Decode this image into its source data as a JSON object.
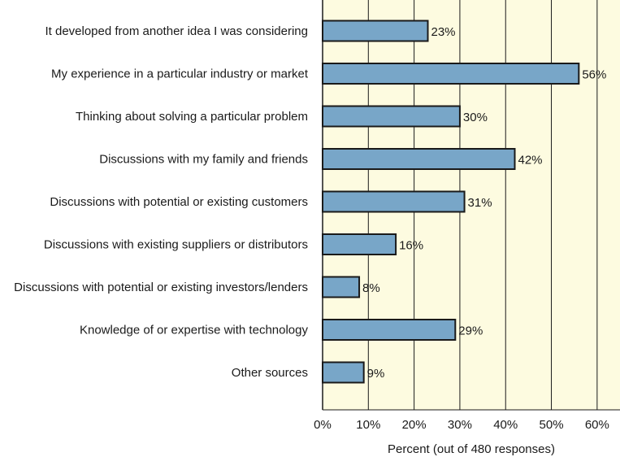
{
  "chart_data": {
    "type": "bar",
    "orientation": "horizontal",
    "categories": [
      "It developed from another idea I was considering",
      "My experience in a particular industry or market",
      "Thinking about solving a particular problem",
      "Discussions with my family and friends",
      "Discussions with potential or existing customers",
      "Discussions with existing suppliers or distributors",
      "Discussions with potential or existing investors/lenders",
      "Knowledge of or expertise with technology",
      "Other sources"
    ],
    "values": [
      23,
      56,
      30,
      42,
      31,
      16,
      8,
      29,
      9
    ],
    "value_labels": [
      "23%",
      "56%",
      "30%",
      "42%",
      "31%",
      "16%",
      "8%",
      "29%",
      "9%"
    ],
    "title": "",
    "xlabel": "Percent (out of 480 responses)",
    "ylabel": "",
    "xlim": [
      0,
      65
    ],
    "xticks": [
      0,
      10,
      20,
      30,
      40,
      50,
      60
    ],
    "xtick_labels": [
      "0%",
      "10%",
      "20%",
      "30%",
      "40%",
      "50%",
      "60%"
    ],
    "grid": true,
    "legend": "none",
    "colors": {
      "bar_fill": "#78a6c8",
      "bar_stroke": "#1a1a1a",
      "plot_background": "#fdfbe0",
      "grid": "#1a1a1a"
    }
  }
}
